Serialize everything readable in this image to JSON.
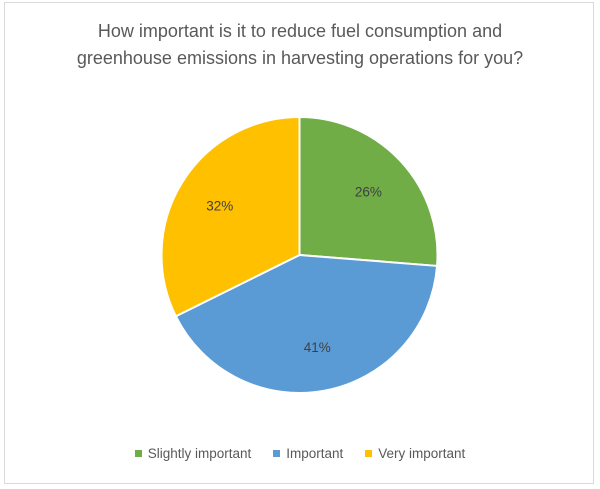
{
  "chart_data": {
    "type": "pie",
    "title_lines": [
      "How important is it to reduce fuel consumption and",
      "greenhouse emissions in harvesting operations for you?"
    ],
    "legend_position": "bottom",
    "slices": [
      {
        "label": "Slightly important",
        "value": 26,
        "display": "26%",
        "color": "#70ad47"
      },
      {
        "label": "Important",
        "value": 41,
        "display": "41%",
        "color": "#5b9bd5"
      },
      {
        "label": "Very important",
        "value": 32,
        "display": "32%",
        "color": "#ffc000"
      }
    ]
  }
}
